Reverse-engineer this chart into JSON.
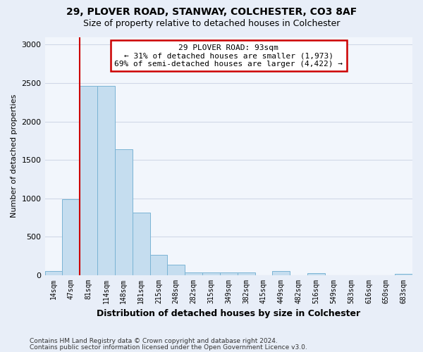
{
  "title1": "29, PLOVER ROAD, STANWAY, COLCHESTER, CO3 8AF",
  "title2": "Size of property relative to detached houses in Colchester",
  "xlabel": "Distribution of detached houses by size in Colchester",
  "ylabel": "Number of detached properties",
  "categories": [
    "14sqm",
    "47sqm",
    "81sqm",
    "114sqm",
    "148sqm",
    "181sqm",
    "215sqm",
    "248sqm",
    "282sqm",
    "315sqm",
    "349sqm",
    "382sqm",
    "415sqm",
    "449sqm",
    "482sqm",
    "516sqm",
    "549sqm",
    "583sqm",
    "616sqm",
    "650sqm",
    "683sqm"
  ],
  "values": [
    55,
    990,
    2460,
    2460,
    1640,
    820,
    270,
    140,
    40,
    40,
    40,
    35,
    0,
    55,
    0,
    25,
    0,
    0,
    0,
    0,
    20
  ],
  "bar_color": "#c5ddef",
  "bar_edge_color": "#7ab4d4",
  "vline_color": "#cc0000",
  "annotation_text": "29 PLOVER ROAD: 93sqm\n← 31% of detached houses are smaller (1,973)\n69% of semi-detached houses are larger (4,422) →",
  "annotation_box_color": "#ffffff",
  "annotation_box_edge_color": "#cc0000",
  "ylim": [
    0,
    3100
  ],
  "yticks": [
    0,
    500,
    1000,
    1500,
    2000,
    2500,
    3000
  ],
  "footer1": "Contains HM Land Registry data © Crown copyright and database right 2024.",
  "footer2": "Contains public sector information licensed under the Open Government Licence v3.0.",
  "bg_color": "#e8eef8",
  "plot_bg_color": "#f2f6fc",
  "grid_color": "#d0d8e8"
}
